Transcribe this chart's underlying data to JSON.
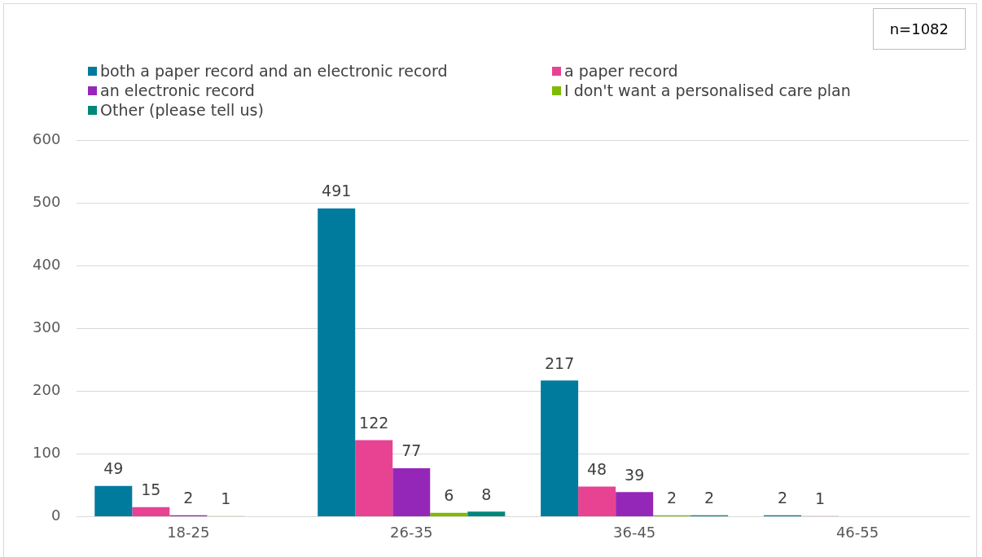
{
  "chart_data": {
    "type": "bar",
    "categories": [
      "18-25",
      "26-35",
      "36-45",
      "46-55"
    ],
    "series": [
      {
        "name": "both a paper record and an electronic record",
        "color": "#007b9e",
        "values": [
          49,
          491,
          217,
          2
        ]
      },
      {
        "name": "a paper record",
        "color": "#e84393",
        "values": [
          15,
          122,
          48,
          1
        ]
      },
      {
        "name": "an electronic record",
        "color": "#9527b8",
        "values": [
          2,
          77,
          39,
          null
        ]
      },
      {
        "name": "I don't want a personalised care plan",
        "color": "#7fba00",
        "values": [
          1,
          6,
          2,
          null
        ]
      },
      {
        "name": "Other (please tell us)",
        "color": "#00877a",
        "values": [
          null,
          8,
          2,
          null
        ]
      }
    ],
    "ylim": [
      0,
      600
    ],
    "yticks": [
      0,
      100,
      200,
      300,
      400,
      500,
      600
    ],
    "grid": "y",
    "legend": "top",
    "data_labels": true,
    "annotations": [
      "n=1082"
    ]
  }
}
